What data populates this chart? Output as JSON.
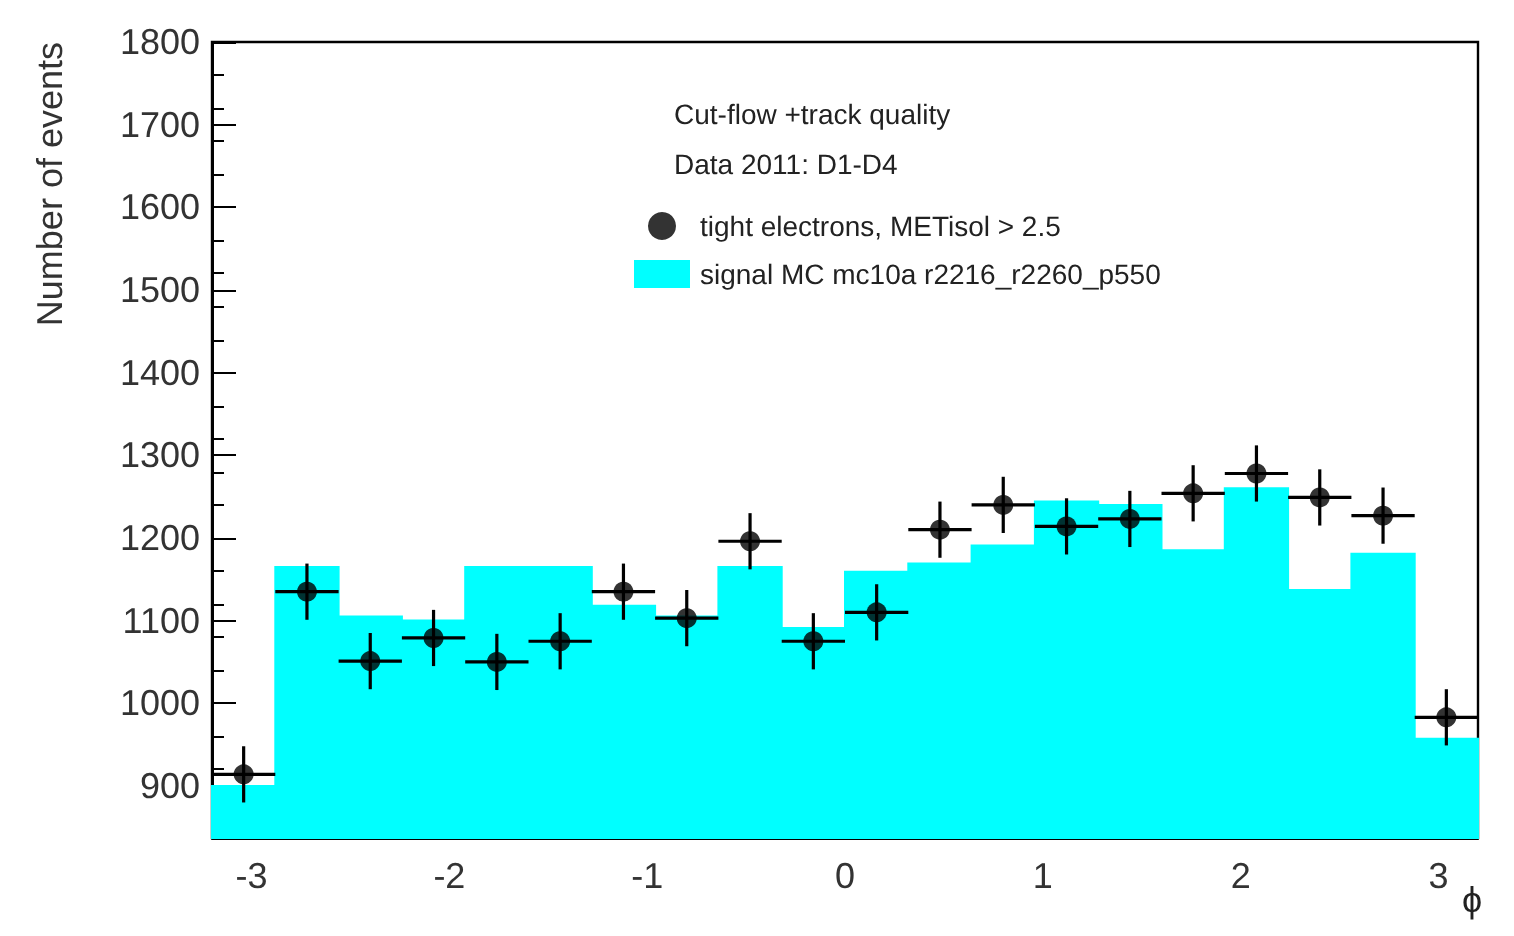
{
  "chart_data": {
    "type": "histogram",
    "xlabel": "ϕ",
    "ylabel": "Number of events",
    "annotations": [
      "Cut-flow +track quality",
      "Data 2011: D1-D4"
    ],
    "xlim": [
      -3.2,
      3.2
    ],
    "xticks": [
      -3,
      -2,
      -1,
      0,
      1,
      2,
      3
    ],
    "ylim": [
      837,
      1800
    ],
    "yticks": [
      900,
      1000,
      1100,
      1200,
      1300,
      1400,
      1500,
      1600,
      1700,
      1800
    ],
    "grid": false,
    "legend": "top right",
    "series": [
      {
        "type": "scatter",
        "name": "tight electrons, METisol > 2.5",
        "color": "#000000",
        "marker": "circle",
        "x": [
          -3.04,
          -2.72,
          -2.4,
          -2.08,
          -1.76,
          -1.44,
          -1.12,
          -0.8,
          -0.48,
          -0.16,
          0.16,
          0.48,
          0.8,
          1.12,
          1.44,
          1.76,
          2.08,
          2.4,
          2.72,
          3.04
        ],
        "values": [
          914,
          1135,
          1051,
          1079,
          1050,
          1075,
          1135,
          1103,
          1196,
          1075,
          1110,
          1210,
          1240,
          1214,
          1223,
          1254,
          1278,
          1249,
          1227,
          983
        ],
        "errors": [
          34,
          34,
          34,
          34,
          34,
          34,
          34,
          34,
          34,
          34,
          34,
          34,
          34,
          34,
          34,
          34,
          34,
          34,
          34,
          34
        ],
        "xerrors": [
          0.16,
          0.16,
          0.16,
          0.16,
          0.16,
          0.16,
          0.16,
          0.16,
          0.16,
          0.16,
          0.16,
          0.16,
          0.16,
          0.16,
          0.16,
          0.16,
          0.16,
          0.16,
          0.16,
          0.16
        ]
      },
      {
        "type": "histogram",
        "name": "signal MC mc10a r2216_r2260_p550",
        "color": "#00ffff",
        "bins": [
          -3.2,
          -2.88,
          -2.56,
          -2.24,
          -1.92,
          -1.6,
          -1.28,
          -0.96,
          -0.64,
          -0.32,
          0,
          0.32,
          0.64,
          0.96,
          1.28,
          1.6,
          1.92,
          2.24,
          2.56,
          2.88,
          3.2
        ],
        "values": [
          900,
          1165,
          1105,
          1100,
          1165,
          1165,
          1118,
          1105,
          1165,
          1091,
          1159,
          1169,
          1191,
          1244,
          1240,
          1185,
          1260,
          1137,
          1181,
          957
        ]
      }
    ]
  }
}
